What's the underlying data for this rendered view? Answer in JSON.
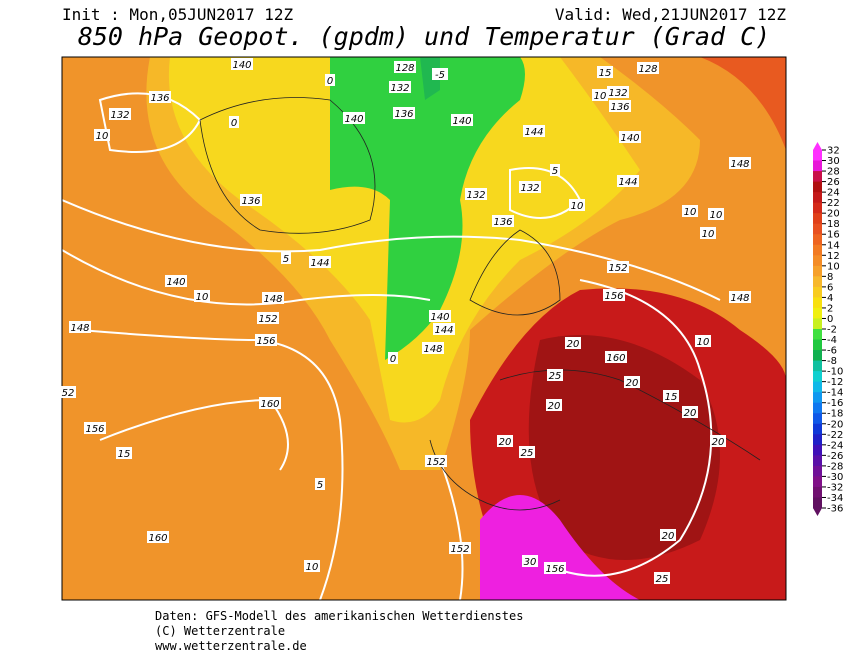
{
  "header": {
    "init": "Init : Mon,05JUN2017 12Z",
    "valid": "Valid: Wed,21JUN2017 12Z",
    "title": "850 hPa Geopot. (gpdm) und Temperatur (Grad C)"
  },
  "colorbar": {
    "ticks": [
      32,
      30,
      28,
      26,
      24,
      22,
      20,
      18,
      16,
      14,
      12,
      10,
      8,
      6,
      4,
      2,
      0,
      -2,
      -4,
      -6,
      -8,
      -10,
      -12,
      -14,
      -16,
      -18,
      -20,
      -22,
      -24,
      -26,
      -28,
      -30,
      -32,
      -34,
      -36
    ],
    "colors": [
      "#ff30ff",
      "#e818d8",
      "#c81048",
      "#b01010",
      "#c41a1a",
      "#d42a1a",
      "#e0401a",
      "#e85020",
      "#ee6420",
      "#f27a22",
      "#f48c26",
      "#f6a02a",
      "#f7b82c",
      "#f8cc20",
      "#f8e010",
      "#f0f010",
      "#c8f020",
      "#40e040",
      "#20c840",
      "#10b050",
      "#10c0a0",
      "#10d0d0",
      "#10b8e8",
      "#1098f0",
      "#1078f0",
      "#1058e8",
      "#1038d8",
      "#2020c8",
      "#4010b8",
      "#5a10a8",
      "#701098",
      "#801088",
      "#701070",
      "#601060"
    ]
  },
  "contour_labels": [
    "140",
    "128",
    "-5",
    "0",
    "132",
    "136",
    "132",
    "10",
    "0",
    "140",
    "136",
    "140",
    "144",
    "140",
    "15",
    "128",
    "10",
    "136",
    "132",
    "5",
    "132",
    "10",
    "136",
    "136",
    "132",
    "144",
    "148",
    "10",
    "10",
    "10",
    "144",
    "5",
    "140",
    "10",
    "148",
    "152",
    "156",
    "152",
    "156",
    "148",
    "10",
    "148",
    "52",
    "156",
    "15",
    "160",
    "5",
    "160",
    "10",
    "152",
    "152",
    "156",
    "30",
    "25",
    "20",
    "20",
    "160",
    "25",
    "20",
    "20",
    "15",
    "20",
    "20",
    "20",
    "25",
    "140",
    "144",
    "148",
    "0"
  ],
  "footer": [
    "Daten: GFS-Modell des amerikanischen Wetterdienstes",
    "(C) Wetterzentrale",
    "www.wetterzentrale.de"
  ]
}
